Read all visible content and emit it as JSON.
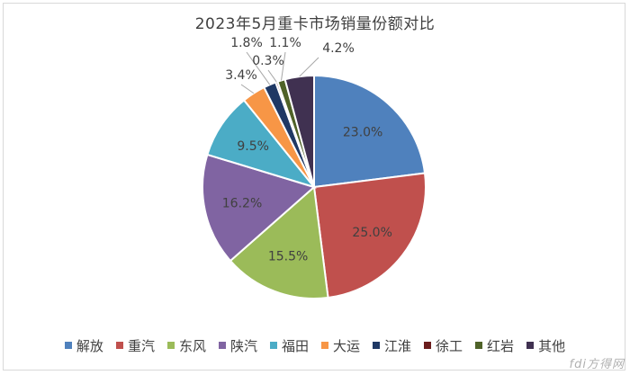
{
  "chart_data": {
    "type": "pie",
    "title": "2023年5月重卡市场销量份额对比",
    "categories": [
      "解放",
      "重汽",
      "东风",
      "陕汽",
      "福田",
      "大运",
      "江淮",
      "徐工",
      "红岩",
      "其他"
    ],
    "values": [
      23.0,
      25.0,
      15.5,
      16.2,
      9.5,
      3.4,
      1.8,
      0.3,
      1.1,
      4.2
    ],
    "labels": [
      "23.0%",
      "25.0%",
      "15.5%",
      "16.2%",
      "9.5%",
      "3.4%",
      "1.8%",
      "0.3%",
      "1.1%",
      "4.2%"
    ],
    "colors": [
      "#4f81bd",
      "#c0504d",
      "#9bbb59",
      "#8064a2",
      "#4bacc6",
      "#f79646",
      "#1f3864",
      "#6b1d1d",
      "#4f6228",
      "#403151"
    ],
    "legend_position": "bottom",
    "start_angle": "12 o'clock",
    "direction": "clockwise"
  },
  "watermark": "fdi方得网"
}
